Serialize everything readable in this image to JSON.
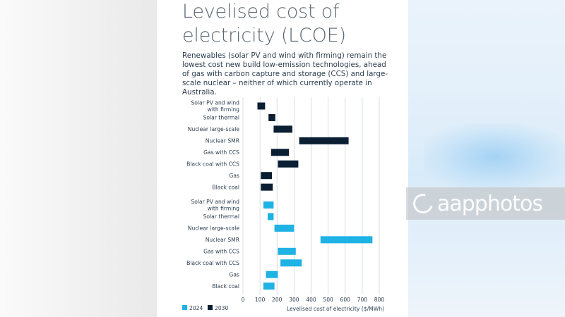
{
  "watermark": {
    "text": "aapphotos"
  },
  "chart_data": {
    "type": "bar",
    "subtype": "floating-range",
    "title": "Levelised cost of electricity (LCOE)",
    "subtitle": "Renewables (solar PV and wind with firming) remain the lowest cost new build low-emission technologies, ahead of gas with carbon capture and storage (CCS) and large-scale nuclear – neither of which currently operate in Australia.",
    "xlabel": "Levelised cost of electricity ($/MWh)",
    "xlim": [
      0,
      800
    ],
    "xticks": [
      0,
      100,
      200,
      300,
      400,
      500,
      600,
      700,
      800
    ],
    "grid": true,
    "legend_position": "bottom-left",
    "series": [
      {
        "name": "2030",
        "color": "#0b1f33",
        "rows": [
          {
            "label": "Solar PV and wind with firming",
            "low": 85,
            "high": 130
          },
          {
            "label": "Solar thermal",
            "low": 150,
            "high": 190
          },
          {
            "label": "Nuclear large-scale",
            "low": 180,
            "high": 290
          },
          {
            "label": "Nuclear SMR",
            "low": 330,
            "high": 620
          },
          {
            "label": "Gas with CCS",
            "low": 165,
            "high": 270
          },
          {
            "label": "Black coal with CCS",
            "low": 205,
            "high": 325
          },
          {
            "label": "Gas",
            "low": 105,
            "high": 170
          },
          {
            "label": "Black coal",
            "low": 105,
            "high": 175
          }
        ]
      },
      {
        "name": "2024",
        "color": "#1fb2e4",
        "rows": [
          {
            "label": "Solar PV and wind with firming",
            "low": 120,
            "high": 180
          },
          {
            "label": "Solar thermal",
            "low": 145,
            "high": 180
          },
          {
            "label": "Nuclear large-scale",
            "low": 185,
            "high": 300
          },
          {
            "label": "Nuclear SMR",
            "low": 455,
            "high": 760
          },
          {
            "label": "Gas with CCS",
            "low": 205,
            "high": 310
          },
          {
            "label": "Black coal with CCS",
            "low": 220,
            "high": 345
          },
          {
            "label": "Gas",
            "low": 135,
            "high": 205
          },
          {
            "label": "Black coal",
            "low": 120,
            "high": 185
          }
        ]
      }
    ],
    "legend": [
      "2024",
      "2030"
    ]
  }
}
